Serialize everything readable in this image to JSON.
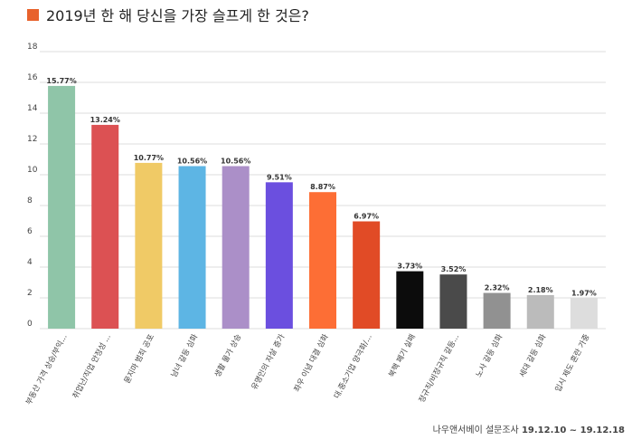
{
  "title": "2019년 한 해 당신을 가장 슬프게 한 것은?",
  "source": {
    "org": "나우앤서베이 설문조사",
    "dates": "19.12.10 ~ 19.12.18"
  },
  "colors": {
    "title_mark": "#e8622c",
    "grid": "#dddddd",
    "axis_text": "#444444"
  },
  "chart_data": {
    "type": "bar",
    "title": "2019년 한 해 당신을 가장 슬프게 한 것은?",
    "categories": [
      "부동산 가격 상승/부익...",
      "취업난/직업 안정성 ...",
      "묻지마 범죄 공포",
      "남녀 갈등 심화",
      "생활 물가 상승",
      "유명인의 자살 증가",
      "좌우 이념 대결 심화",
      "대.중소기업 양극화/...",
      "북핵 폐기 실패",
      "정규직/비정규직 갈등...",
      "노사 갈등 심화",
      "세대 갈등 심화",
      "입시 제도 혼란 가중"
    ],
    "values": [
      15.77,
      13.24,
      10.77,
      10.56,
      10.56,
      9.51,
      8.87,
      6.97,
      3.73,
      3.52,
      2.32,
      2.18,
      1.97
    ],
    "data_labels": [
      "15.77%",
      "13.24%",
      "10.77%",
      "10.56%",
      "10.56%",
      "9.51%",
      "8.87%",
      "6.97%",
      "3.73%",
      "3.52%",
      "2.32%",
      "2.18%",
      "1.97%"
    ],
    "bar_colors": [
      "#8fc5a8",
      "#dc5153",
      "#f0ca66",
      "#5db5e4",
      "#ab8fc8",
      "#6b4fdf",
      "#fd6e35",
      "#e14b26",
      "#0c0c0c",
      "#4a4a4a",
      "#919191",
      "#bbbbbb",
      "#dddddd"
    ],
    "yticks": [
      "0",
      "2",
      "4",
      "6",
      "8",
      "10",
      "12",
      "14",
      "16",
      "18"
    ],
    "ylim": [
      0,
      18
    ],
    "grid": true,
    "legend": "none",
    "xlabel": "",
    "ylabel": ""
  }
}
